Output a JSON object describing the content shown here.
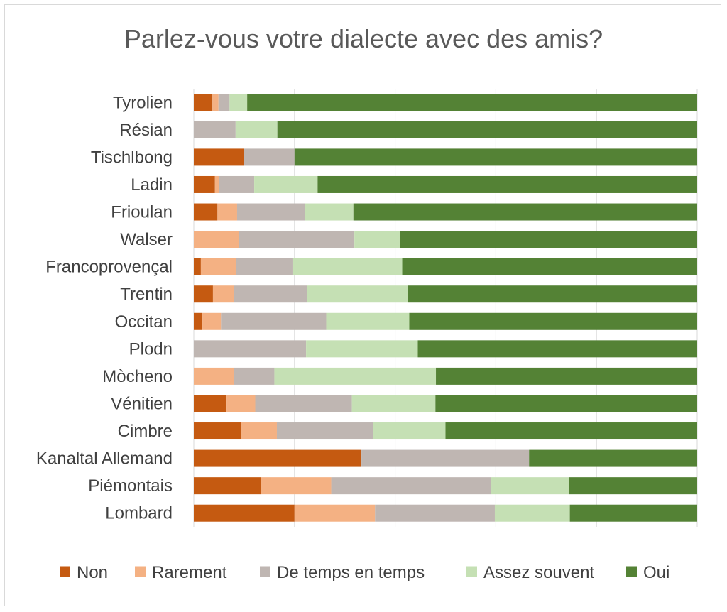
{
  "chart_data": {
    "type": "bar",
    "orientation": "horizontal",
    "stacked": "percent",
    "title": "Parlez-vous votre dialecte avec des amis?",
    "xlim": [
      0,
      100
    ],
    "grid": true,
    "legend_position": "bottom",
    "categories": [
      "Tyrolien",
      "Résian",
      "Tischlbong",
      "Ladin",
      "Frioulan",
      "Walser",
      "Francoprovençal",
      "Trentin",
      "Occitan",
      "Plodn",
      "Mòcheno",
      "Vénitien",
      "Cimbre",
      "Kanaltal Allemand",
      "Piémontais",
      "Lombard"
    ],
    "series": [
      {
        "name": "Non",
        "color": "#C55A11",
        "values": [
          3.7,
          0,
          10,
          4.2,
          4.7,
          0,
          1.4,
          3.8,
          1.7,
          0,
          0,
          6.5,
          9.4,
          33.3,
          13.4,
          20
        ]
      },
      {
        "name": "Rarement",
        "color": "#F4B183",
        "values": [
          1.2,
          0,
          0,
          0.8,
          3.9,
          9,
          7,
          4.2,
          3.7,
          0,
          8,
          5.7,
          7.1,
          0,
          13.9,
          16
        ]
      },
      {
        "name": "De temps en temps",
        "color": "#BFB6B2",
        "values": [
          2.2,
          8.3,
          10,
          7,
          13.5,
          22.9,
          11.2,
          14.5,
          20.9,
          22.3,
          8,
          19.2,
          19.1,
          33.3,
          31.7,
          23.8
        ]
      },
      {
        "name": "Assez souvent",
        "color": "#C5E0B4",
        "values": [
          3.5,
          8.3,
          0,
          12.6,
          9.6,
          9.1,
          21.8,
          20,
          16.5,
          22.2,
          32.1,
          16.6,
          14.4,
          0,
          15.5,
          14.9
        ]
      },
      {
        "name": "Oui",
        "color": "#548235",
        "values": [
          89.4,
          83.4,
          80,
          75.4,
          68.3,
          59,
          58.6,
          57.5,
          57.2,
          55.5,
          51.9,
          52,
          50,
          33.4,
          25.5,
          25.3
        ]
      }
    ]
  }
}
